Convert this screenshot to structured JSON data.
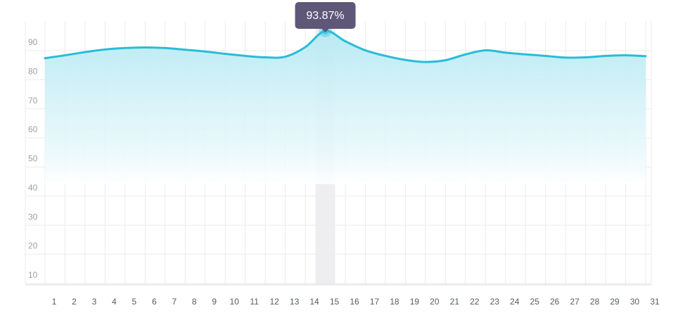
{
  "chart_data": {
    "type": "area",
    "title": "",
    "xlabel": "",
    "ylabel": "",
    "categories": [
      "1",
      "2",
      "3",
      "4",
      "5",
      "6",
      "7",
      "8",
      "9",
      "10",
      "11",
      "12",
      "13",
      "14",
      "15",
      "16",
      "17",
      "18",
      "19",
      "20",
      "21",
      "22",
      "23",
      "24",
      "25",
      "26",
      "27",
      "28",
      "29",
      "30",
      "31"
    ],
    "series": [
      {
        "name": "",
        "values": [
          84.5,
          85.5,
          86.6,
          87.5,
          88.0,
          88.2,
          88.0,
          87.4,
          86.8,
          86.0,
          85.3,
          84.8,
          85.0,
          88.3,
          93.87,
          90.3,
          87.2,
          85.3,
          83.9,
          83.2,
          83.8,
          85.8,
          87.2,
          86.4,
          85.8,
          85.3,
          84.7,
          84.8,
          85.3,
          85.5,
          85.2
        ]
      }
    ],
    "ylim": [
      0,
      100
    ],
    "yticks": [
      "10",
      "20",
      "30",
      "40",
      "50",
      "60",
      "70",
      "80",
      "90"
    ],
    "grid": true,
    "legend": "none",
    "colors": {
      "line": "#29bcd8",
      "fill_top": "#b6e9f3",
      "grid": "#ebebeb",
      "tooltip_bg": "#5e5778",
      "highlight_band": "#eeeef1",
      "y_tick_text": "#9aa0a6",
      "x_tick_text": "#555b61"
    },
    "highlight": {
      "category": "15",
      "label": "93.87%"
    }
  }
}
